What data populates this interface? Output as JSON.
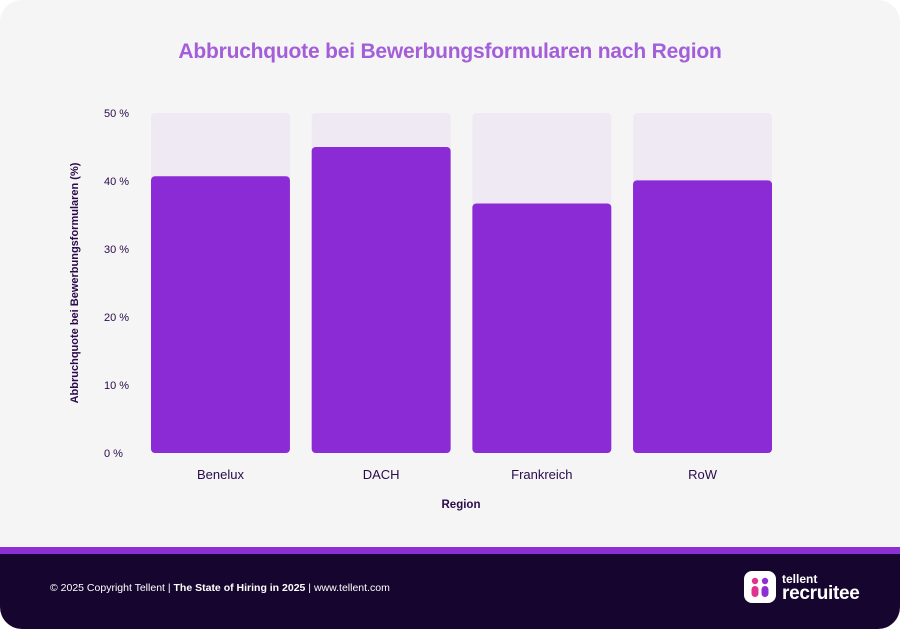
{
  "chart_data": {
    "type": "bar",
    "title": "Abbruchquote bei Bewerbungsformularen nach Region",
    "xlabel": "Region",
    "ylabel": "Abbruchquote bei Bewerbungsformularen (%)",
    "categories": [
      "Benelux",
      "DACH",
      "Frankreich",
      "RoW"
    ],
    "values": [
      40.7,
      45.0,
      36.7,
      40.1
    ],
    "ylim": [
      0,
      50
    ],
    "yticks": [
      0,
      10,
      20,
      30,
      40,
      50
    ],
    "ytick_labels": [
      "0  %",
      "10 %",
      "20 %",
      "30 %",
      "40 %",
      "50 %"
    ],
    "grid": false,
    "colors": {
      "bar": "#8a2bd6",
      "track": "#efe9f4",
      "axis_text": "#2a0a4a",
      "title": "#a35ed9"
    }
  },
  "footer": {
    "copyright": "© 2025 Copyright Tellent | ",
    "report": "The State of Hiring in 2025",
    "url": " | www.tellent.com"
  },
  "logo": {
    "brand": "tellent",
    "product": "recruitee",
    "icon": "recruitee-logo-icon"
  }
}
